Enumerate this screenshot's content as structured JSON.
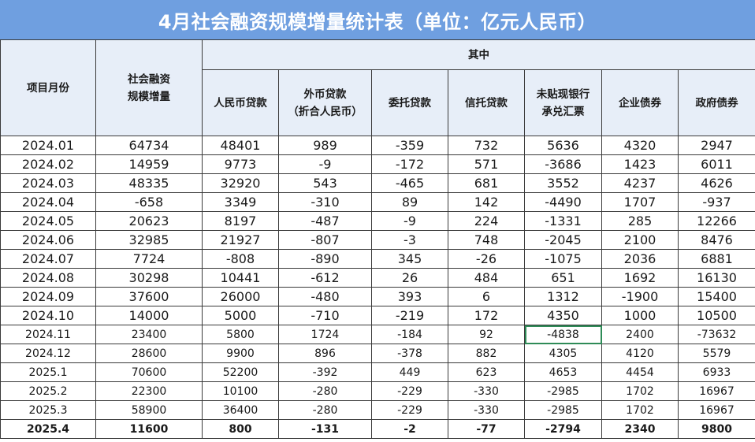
{
  "title": "4月社会融资规模增量统计表（单位：亿元人民币）",
  "headers": {
    "month": "项目月份",
    "total_l1": "社会融资",
    "total_l2": "规模增量",
    "group": "其中",
    "rmb_loans": "人民币贷款",
    "fx_loans_l1": "外币贷款",
    "fx_loans_l2": "（折合人民币）",
    "entrusted_loans": "委托贷款",
    "trust_loans": "信托贷款",
    "bankers_acceptance_l1": "未贴现银行",
    "bankers_acceptance_l2": "承兑汇票",
    "corporate_bonds": "企业债券",
    "government_bonds": "政府债券"
  },
  "rows": [
    [
      "2024.01",
      "64734",
      "48401",
      "989",
      "-359",
      "732",
      "5636",
      "4320",
      "2947"
    ],
    [
      "2024.02",
      "14959",
      "9773",
      "-9",
      "-172",
      "571",
      "-3686",
      "1423",
      "6011"
    ],
    [
      "2024.03",
      "48335",
      "32920",
      "543",
      "-465",
      "681",
      "3552",
      "4237",
      "4626"
    ],
    [
      "2024.04",
      "-658",
      "3349",
      "-310",
      "89",
      "142",
      "-4490",
      "1707",
      "-937"
    ],
    [
      "2024.05",
      "20623",
      "8197",
      "-487",
      "-9",
      "224",
      "-1331",
      "285",
      "12266"
    ],
    [
      "2024.06",
      "32985",
      "21927",
      "-807",
      "-3",
      "748",
      "-2045",
      "2100",
      "8476"
    ],
    [
      "2024.07",
      "7724",
      "-808",
      "-890",
      "345",
      "-26",
      "-1075",
      "2036",
      "6881"
    ],
    [
      "2024.08",
      "30298",
      "10441",
      "-612",
      "26",
      "484",
      "651",
      "1692",
      "16130"
    ],
    [
      "2024.09",
      "37600",
      "26000",
      "-480",
      "393",
      "6",
      "1312",
      "-1900",
      "15400"
    ],
    [
      "2024.10",
      "14000",
      "5000",
      "-710",
      "-219",
      "172",
      "4350",
      "1000",
      "10500"
    ],
    [
      "2024.11",
      "23400",
      "5800",
      "1724",
      "-184",
      "92",
      "-4838",
      "2400",
      "-73632"
    ],
    [
      "2024.12",
      "28600",
      "9900",
      "896",
      "-378",
      "882",
      "4305",
      "4120",
      "5579"
    ],
    [
      "2025.1",
      "70600",
      "52200",
      "-392",
      "449",
      "623",
      "4653",
      "4454",
      "6933"
    ],
    [
      "2025.2",
      "22300",
      "10100",
      "-280",
      "-229",
      "-330",
      "-2985",
      "1702",
      "16967"
    ],
    [
      "2025.3",
      "58900",
      "36400",
      "-280",
      "-229",
      "-330",
      "-2985",
      "1702",
      "16967"
    ],
    [
      "2025.4",
      "11600",
      "800",
      "-131",
      "-2",
      "-77",
      "-2794",
      "2340",
      "9800"
    ]
  ],
  "colors": {
    "title_bg": "#6f9fe0",
    "header_bg": "#e7eef8",
    "selection": "#2e8b57"
  }
}
